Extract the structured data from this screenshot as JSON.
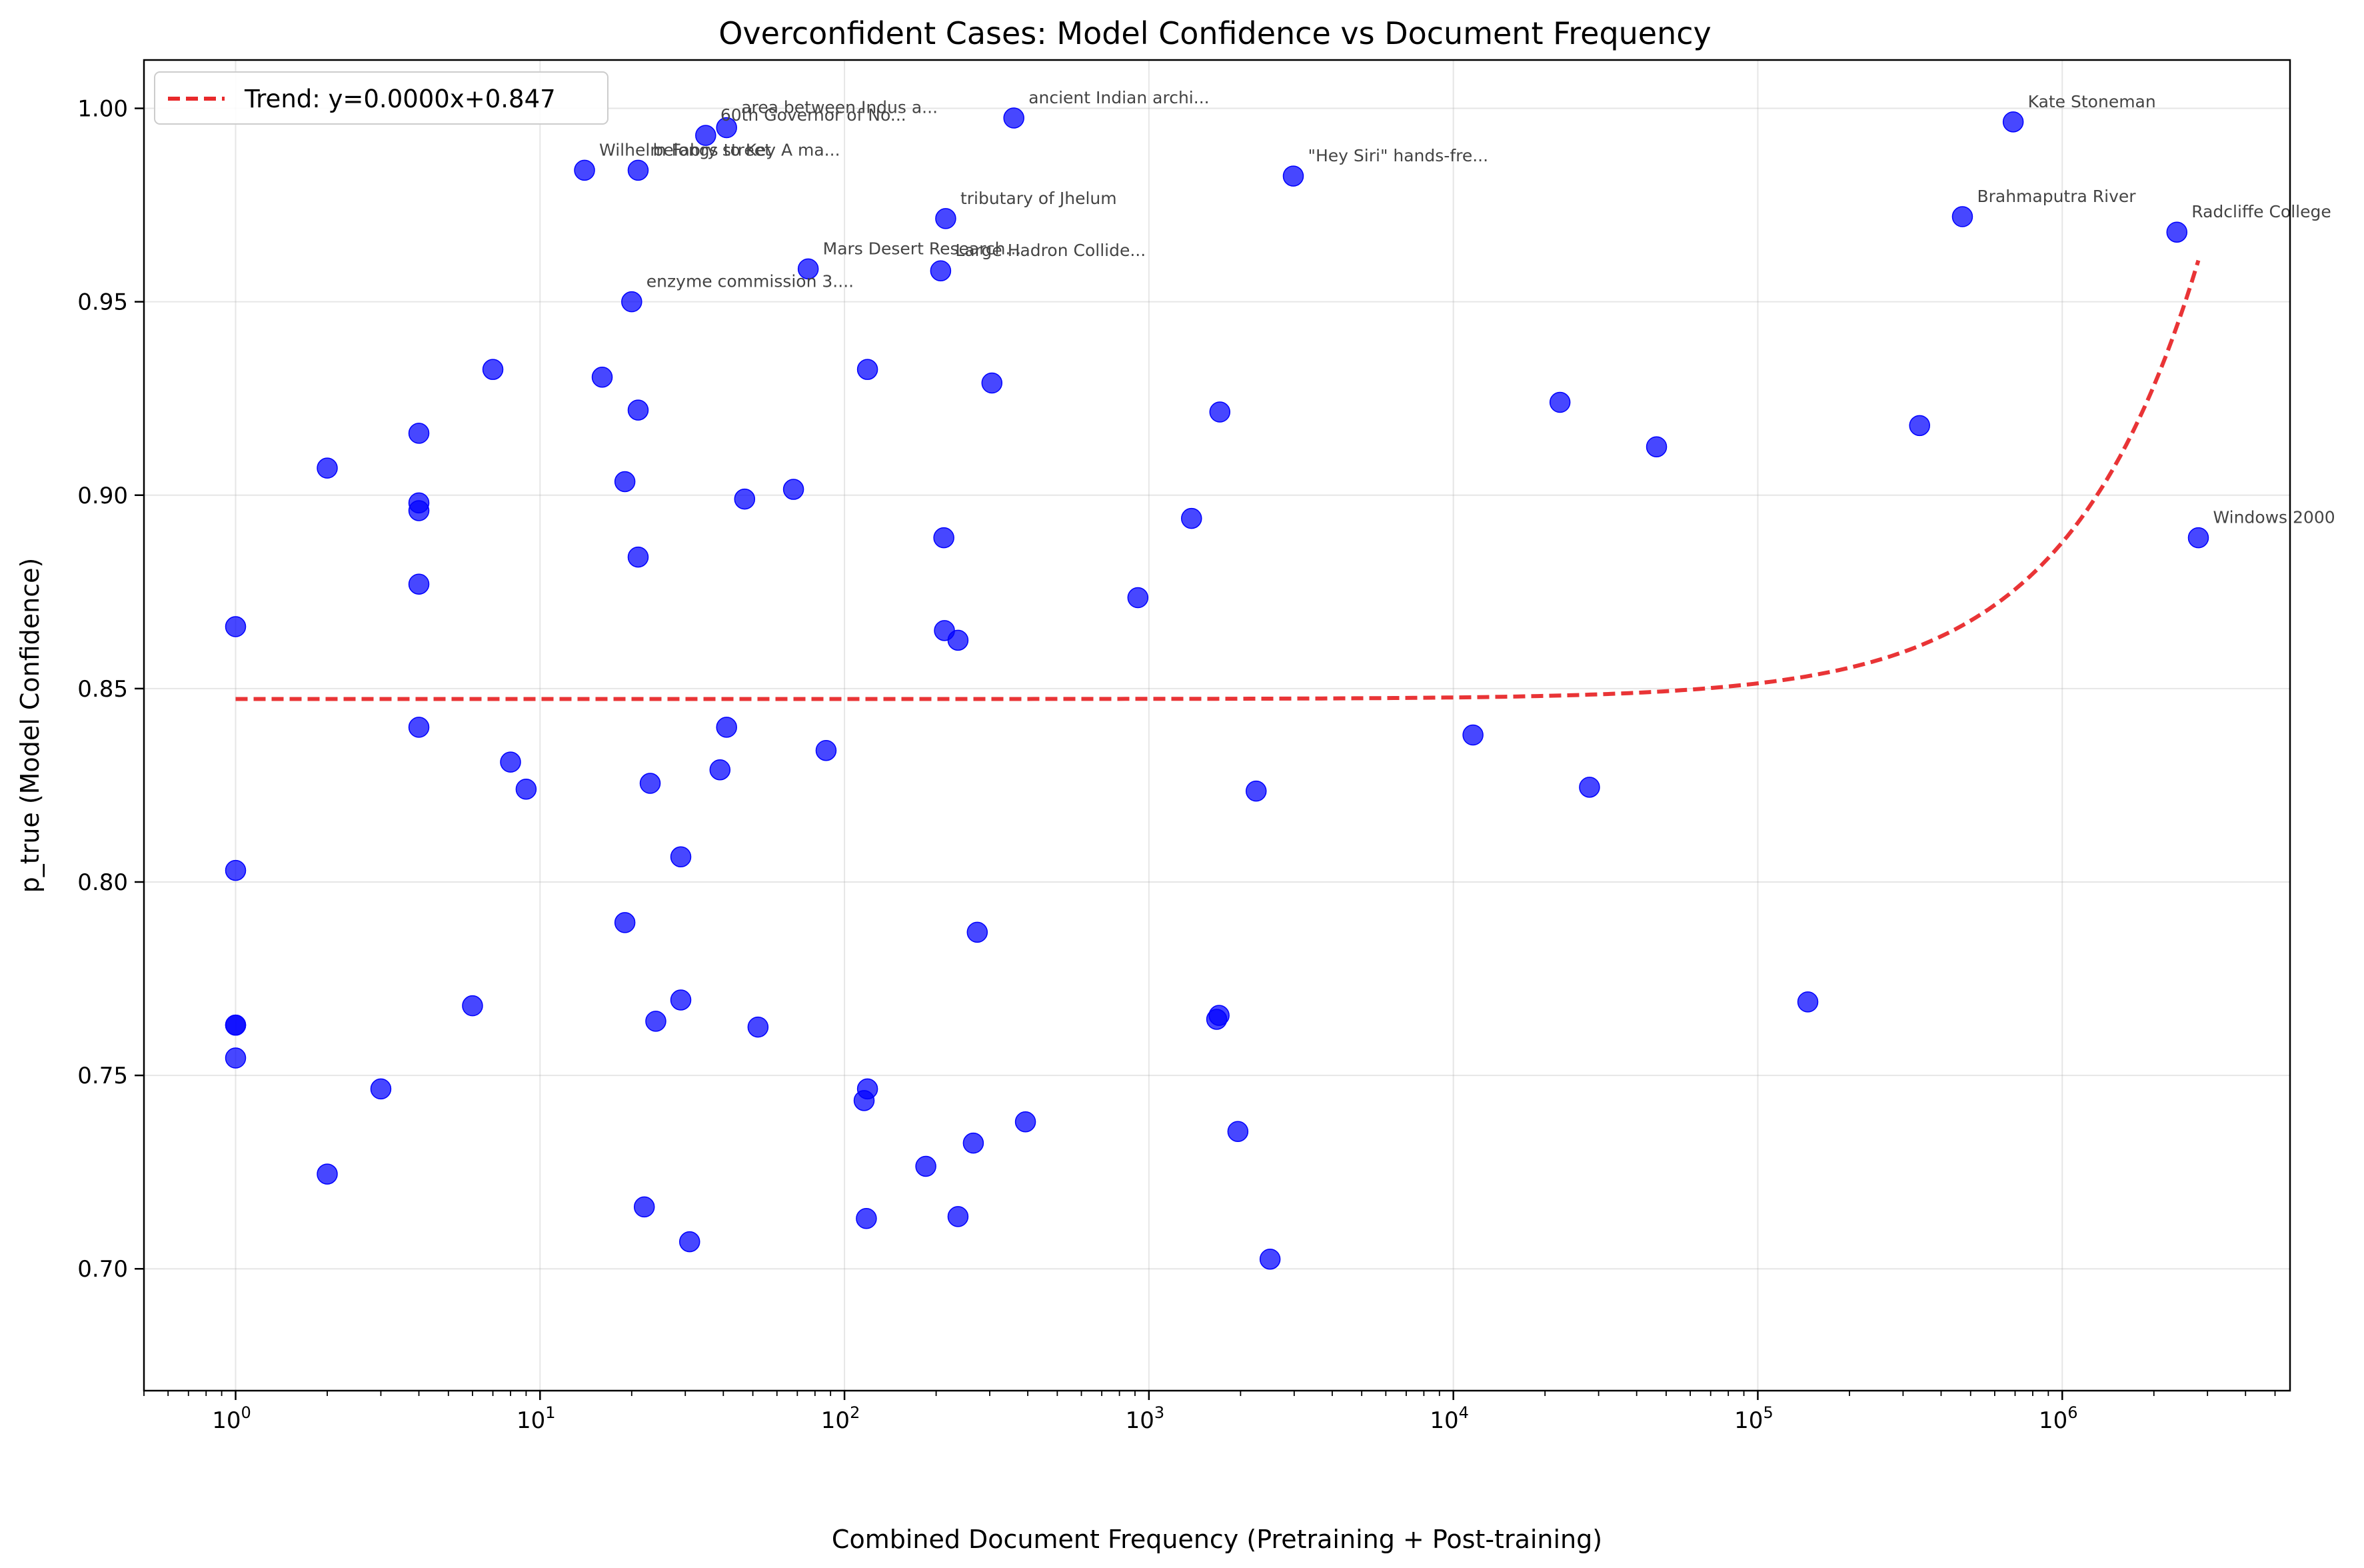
{
  "chart_data": {
    "type": "scatter",
    "title": "Overconfident Cases: Model Confidence vs Document Frequency",
    "xlabel": "Combined Document Frequency (Pretraining + Post-training)",
    "ylabel": "p_true (Model Confidence)",
    "xscale": "log",
    "xlim": [
      0.5,
      5600000
    ],
    "ylim": [
      0.6685,
      1.0125
    ],
    "grid": true,
    "legend_position": "top-left",
    "x_ticks": [
      {
        "value": 1,
        "base": "10",
        "exp": "0"
      },
      {
        "value": 10,
        "base": "10",
        "exp": "1"
      },
      {
        "value": 100,
        "base": "10",
        "exp": "2"
      },
      {
        "value": 1000,
        "base": "10",
        "exp": "3"
      },
      {
        "value": 10000,
        "base": "10",
        "exp": "4"
      },
      {
        "value": 100000,
        "base": "10",
        "exp": "5"
      },
      {
        "value": 1000000,
        "base": "10",
        "exp": "6"
      }
    ],
    "y_ticks": [
      {
        "value": 0.7,
        "label": "0.70"
      },
      {
        "value": 0.75,
        "label": "0.75"
      },
      {
        "value": 0.8,
        "label": "0.80"
      },
      {
        "value": 0.85,
        "label": "0.85"
      },
      {
        "value": 0.9,
        "label": "0.90"
      },
      {
        "value": 0.95,
        "label": "0.95"
      },
      {
        "value": 1.0,
        "label": "1.00"
      }
    ],
    "colors": {
      "points": "#0000ff",
      "trend": "#e8292b"
    },
    "trend": {
      "label": "Trend: y=0.0000x+0.847",
      "slope": 4.05e-08,
      "intercept": 0.8473,
      "x_range": [
        1,
        2800000
      ]
    },
    "points": [
      {
        "x": 1,
        "y": 0.866
      },
      {
        "x": 1,
        "y": 0.803
      },
      {
        "x": 1,
        "y": 0.763
      },
      {
        "x": 1,
        "y": 0.763
      },
      {
        "x": 1,
        "y": 0.7545
      },
      {
        "x": 2,
        "y": 0.907
      },
      {
        "x": 2,
        "y": 0.7245
      },
      {
        "x": 3,
        "y": 0.7465
      },
      {
        "x": 4,
        "y": 0.916
      },
      {
        "x": 4,
        "y": 0.898
      },
      {
        "x": 4,
        "y": 0.896
      },
      {
        "x": 4,
        "y": 0.877
      },
      {
        "x": 4,
        "y": 0.84
      },
      {
        "x": 6,
        "y": 0.768
      },
      {
        "x": 7,
        "y": 0.9325
      },
      {
        "x": 8,
        "y": 0.831
      },
      {
        "x": 9,
        "y": 0.824
      },
      {
        "x": 14,
        "y": 0.984,
        "label": "Wilhelm Fabry street"
      },
      {
        "x": 16,
        "y": 0.9305
      },
      {
        "x": 19,
        "y": 0.9035
      },
      {
        "x": 19,
        "y": 0.7895
      },
      {
        "x": 20,
        "y": 0.95,
        "label": "enzyme commission 3...."
      },
      {
        "x": 21,
        "y": 0.984,
        "label": "belongs to Key A ma..."
      },
      {
        "x": 21,
        "y": 0.922
      },
      {
        "x": 21,
        "y": 0.884
      },
      {
        "x": 22,
        "y": 0.716
      },
      {
        "x": 23,
        "y": 0.8255
      },
      {
        "x": 24,
        "y": 0.764
      },
      {
        "x": 29,
        "y": 0.8065
      },
      {
        "x": 29,
        "y": 0.7695
      },
      {
        "x": 31,
        "y": 0.707
      },
      {
        "x": 35,
        "y": 0.993,
        "label": "60th Governor of No..."
      },
      {
        "x": 39,
        "y": 0.829
      },
      {
        "x": 41,
        "y": 0.84
      },
      {
        "x": 41,
        "y": 0.995,
        "label": "area between Indus a..."
      },
      {
        "x": 47,
        "y": 0.899
      },
      {
        "x": 52,
        "y": 0.7625
      },
      {
        "x": 68,
        "y": 0.9015
      },
      {
        "x": 76,
        "y": 0.9585,
        "label": "Mars Desert Research..."
      },
      {
        "x": 87,
        "y": 0.834
      },
      {
        "x": 116,
        "y": 0.7435
      },
      {
        "x": 118,
        "y": 0.713
      },
      {
        "x": 119,
        "y": 0.7465
      },
      {
        "x": 119,
        "y": 0.9325
      },
      {
        "x": 185,
        "y": 0.7265
      },
      {
        "x": 207,
        "y": 0.958,
        "label": "Large Hadron Collide..."
      },
      {
        "x": 212,
        "y": 0.889
      },
      {
        "x": 213,
        "y": 0.865
      },
      {
        "x": 215,
        "y": 0.9715,
        "label": "tributary of Jhelum"
      },
      {
        "x": 236,
        "y": 0.7135
      },
      {
        "x": 236,
        "y": 0.8625
      },
      {
        "x": 265,
        "y": 0.7325
      },
      {
        "x": 273,
        "y": 0.787
      },
      {
        "x": 305,
        "y": 0.929
      },
      {
        "x": 360,
        "y": 0.9975,
        "label": "ancient Indian archi..."
      },
      {
        "x": 393,
        "y": 0.738
      },
      {
        "x": 920,
        "y": 0.8735
      },
      {
        "x": 1380,
        "y": 0.894
      },
      {
        "x": 1670,
        "y": 0.7645
      },
      {
        "x": 1700,
        "y": 0.7655
      },
      {
        "x": 1710,
        "y": 0.9215
      },
      {
        "x": 1960,
        "y": 0.7355
      },
      {
        "x": 2250,
        "y": 0.8235
      },
      {
        "x": 2500,
        "y": 0.7025
      },
      {
        "x": 2980,
        "y": 0.9825,
        "label": "\"Hey Siri\" hands-fre..."
      },
      {
        "x": 11600,
        "y": 0.838
      },
      {
        "x": 22400,
        "y": 0.924
      },
      {
        "x": 28000,
        "y": 0.8245
      },
      {
        "x": 46500,
        "y": 0.9125
      },
      {
        "x": 146000,
        "y": 0.769
      },
      {
        "x": 340000,
        "y": 0.918
      },
      {
        "x": 470000,
        "y": 0.972,
        "label": "Brahmaputra River"
      },
      {
        "x": 690000,
        "y": 0.9965,
        "label": "Kate Stoneman"
      },
      {
        "x": 2380000,
        "y": 0.968,
        "label": "Radcliffe College"
      },
      {
        "x": 2800000,
        "y": 0.889,
        "label": "Windows 2000"
      }
    ]
  }
}
